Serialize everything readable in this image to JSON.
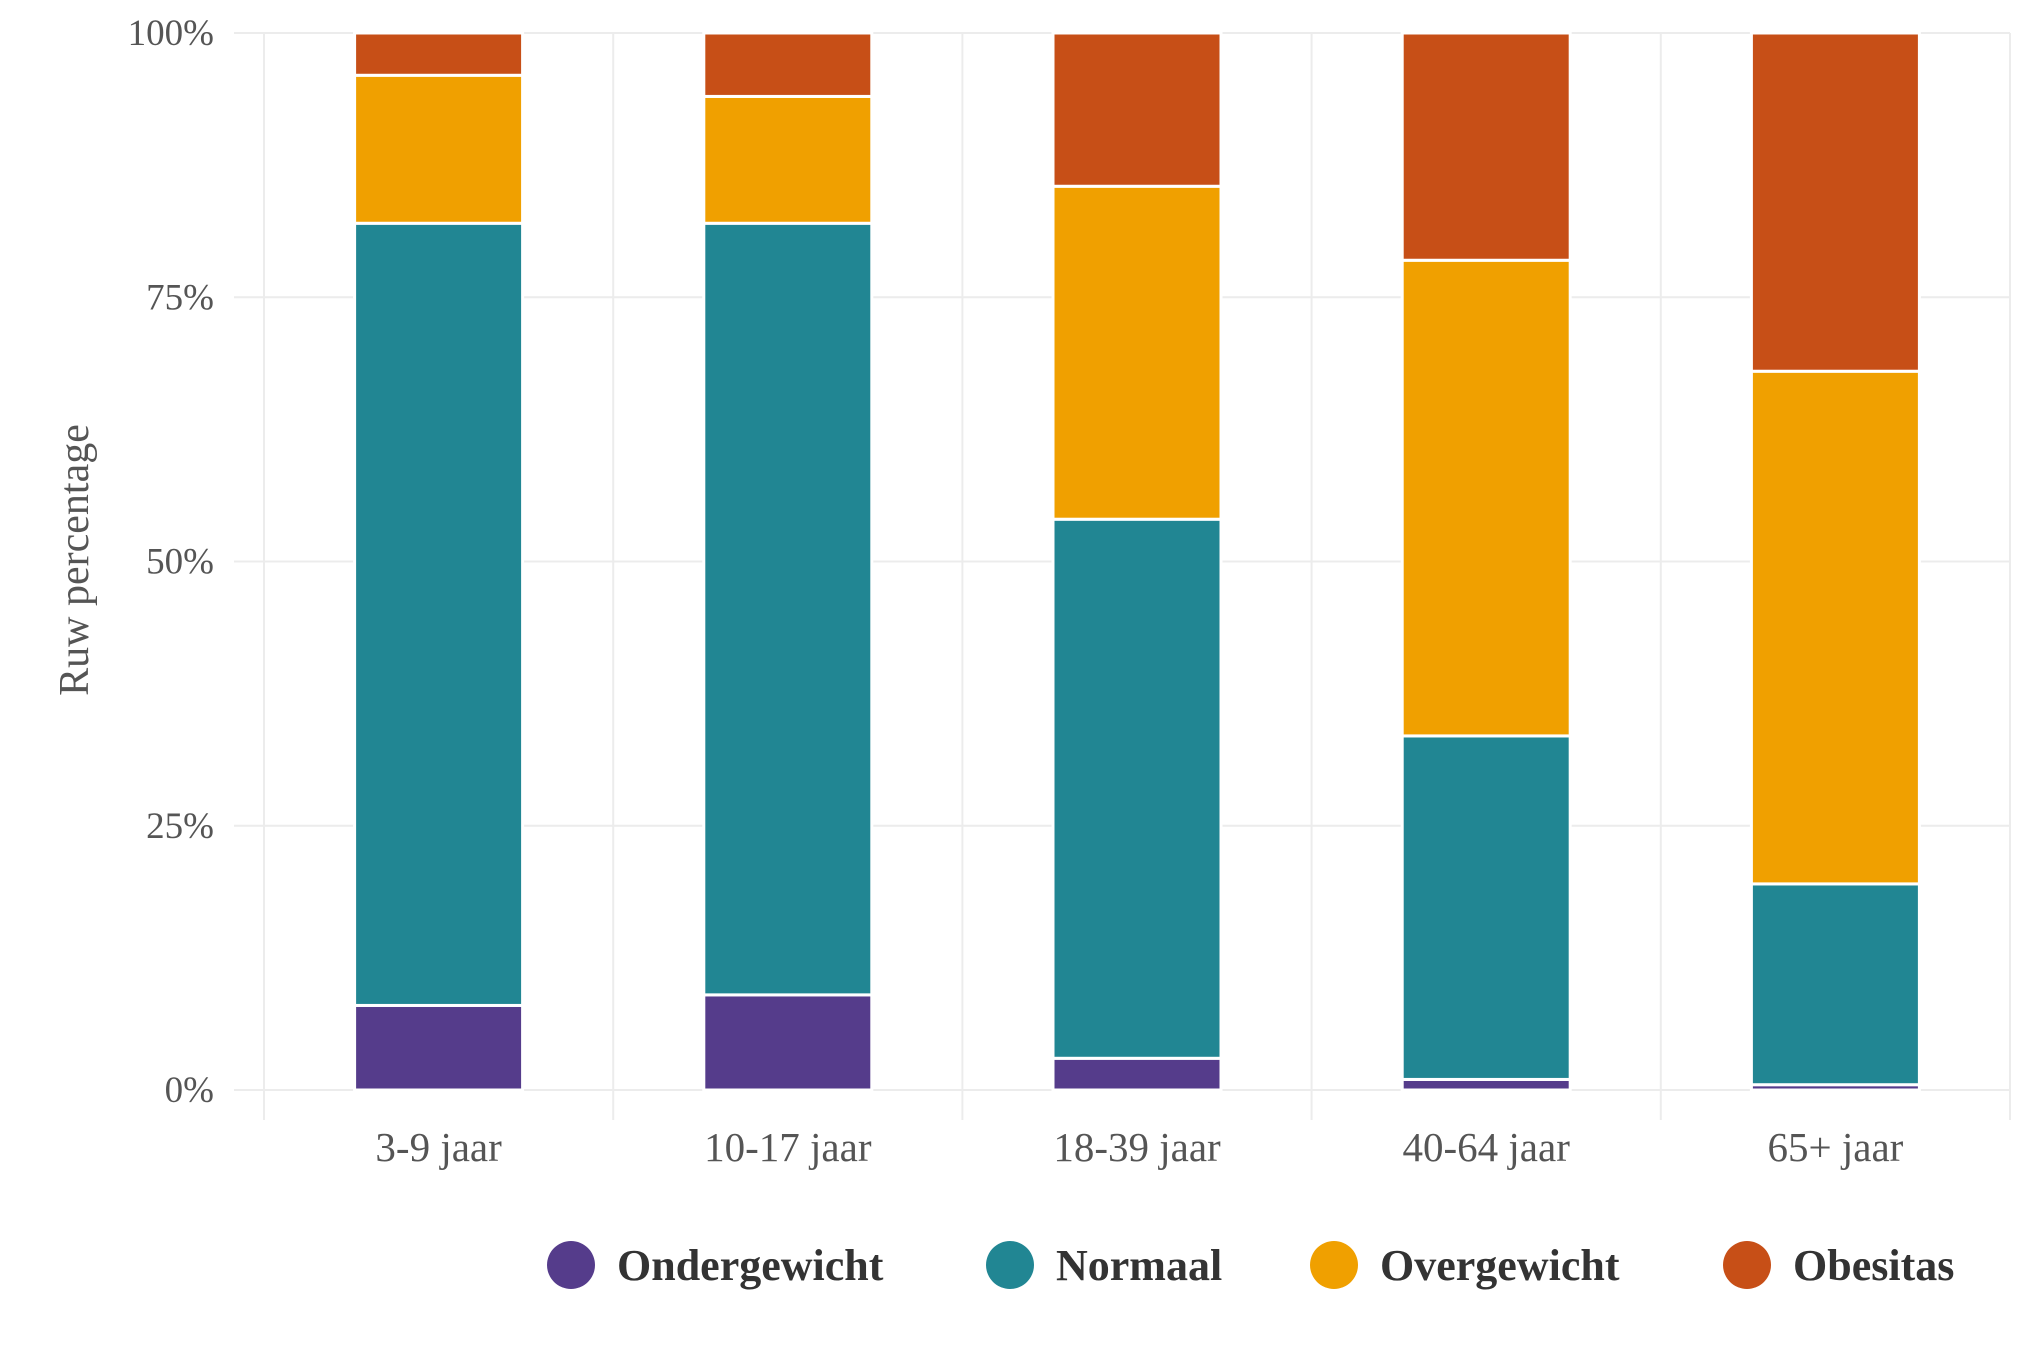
{
  "chart_data": {
    "type": "bar",
    "stacked": true,
    "categories": [
      "3-9 jaar",
      "10-17 jaar",
      "18-39 jaar",
      "40-64 jaar",
      "65+ jaar"
    ],
    "series": [
      {
        "name": "Ondergewicht",
        "color": "#553C8B",
        "values": [
          8,
          9,
          3,
          1,
          0.5
        ]
      },
      {
        "name": "Normaal",
        "color": "#218693",
        "values": [
          74,
          73,
          51,
          32.5,
          19
        ]
      },
      {
        "name": "Overgewicht",
        "color": "#F0A000",
        "values": [
          14,
          12,
          31.5,
          45,
          48.5
        ]
      },
      {
        "name": "Obesitas",
        "color": "#C74F17",
        "values": [
          4,
          6,
          14.5,
          21.5,
          32
        ]
      }
    ],
    "ylabel": "Ruw percentage",
    "xlabel": "",
    "ylim": [
      0,
      100
    ],
    "yticks": [
      0,
      25,
      50,
      75,
      100
    ],
    "ytick_labels": [
      "0%",
      "25%",
      "50%",
      "75%",
      "100%"
    ],
    "grid": true,
    "legend_position": "bottom"
  }
}
